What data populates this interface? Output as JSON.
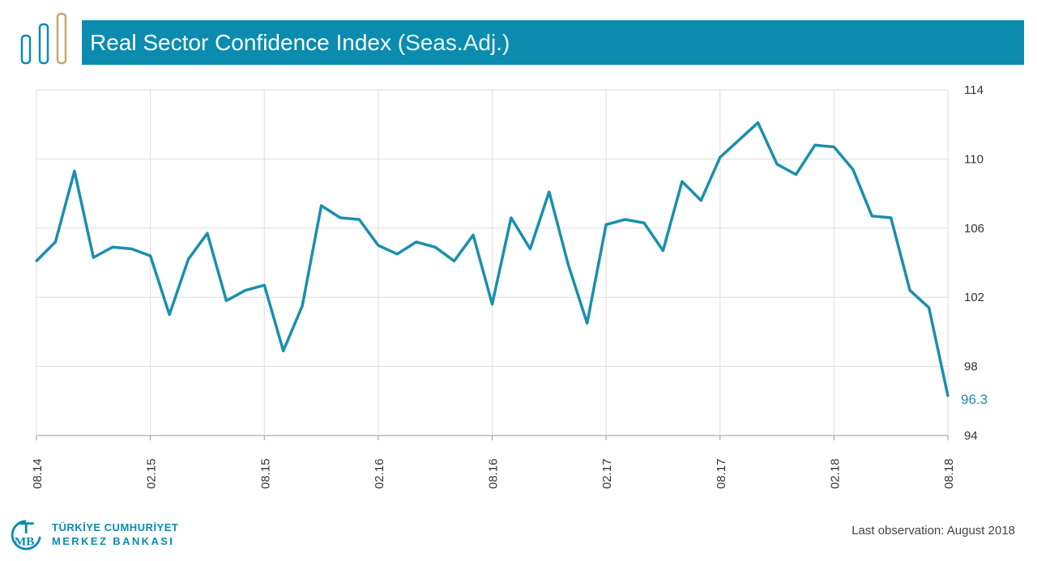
{
  "header": {
    "title": "Real Sector Confidence Index",
    "subtitle": "(Seas.Adj.)",
    "logo_icon": "three-bars-icon"
  },
  "footer": {
    "bank_line1": "TÜRKİYE CUMHURİYET",
    "bank_line2": "MERKEZ BANKASI",
    "bank_logo_icon": "tcmb-logo-icon",
    "last_observation": "Last observation: August 2018"
  },
  "colors": {
    "accent": "#0b8caf",
    "line": "#1a8fae",
    "logo_gold": "#c8a76a",
    "grid": "#dddddd"
  },
  "chart_data": {
    "type": "line",
    "title": "Real Sector Confidence Index (Seas.Adj.)",
    "xlabel": "",
    "ylabel": "",
    "ylim": [
      94,
      114
    ],
    "yticks": [
      94,
      98,
      102,
      106,
      110,
      114
    ],
    "grid": true,
    "y_axis_side": "right",
    "x_tick_labels": [
      "08.14",
      "02.15",
      "08.15",
      "02.16",
      "08.16",
      "02.17",
      "08.17",
      "02.18",
      "08.18"
    ],
    "last_value_label": "96.3",
    "series": [
      {
        "x": [
          "08.14",
          "09.14",
          "10.14",
          "11.14",
          "12.14",
          "01.15",
          "02.15",
          "03.15",
          "04.15",
          "05.15",
          "06.15",
          "07.15",
          "08.15",
          "09.15",
          "10.15",
          "11.15",
          "12.15",
          "01.16",
          "02.16",
          "03.16",
          "04.16",
          "05.16",
          "06.16",
          "07.16",
          "08.16",
          "09.16",
          "10.16",
          "11.16",
          "12.16",
          "01.17",
          "02.17",
          "03.17",
          "04.17",
          "05.17",
          "06.17",
          "07.17",
          "08.17",
          "09.17",
          "10.17",
          "11.17",
          "12.17",
          "01.18",
          "02.18",
          "03.18",
          "04.18",
          "05.18",
          "06.18",
          "07.18",
          "08.18"
        ],
        "values": [
          104.1,
          105.2,
          109.3,
          104.3,
          104.9,
          104.8,
          104.4,
          101.0,
          104.2,
          105.7,
          101.8,
          102.4,
          102.7,
          98.9,
          101.5,
          107.3,
          106.6,
          106.5,
          105.0,
          104.5,
          105.2,
          104.9,
          104.1,
          105.6,
          101.6,
          106.6,
          104.8,
          108.1,
          103.9,
          100.5,
          106.2,
          106.5,
          106.3,
          104.7,
          108.7,
          107.6,
          110.1,
          111.1,
          112.1,
          109.7,
          109.1,
          110.8,
          110.7,
          109.4,
          106.7,
          106.6,
          102.4,
          101.4,
          96.3
        ]
      }
    ]
  }
}
